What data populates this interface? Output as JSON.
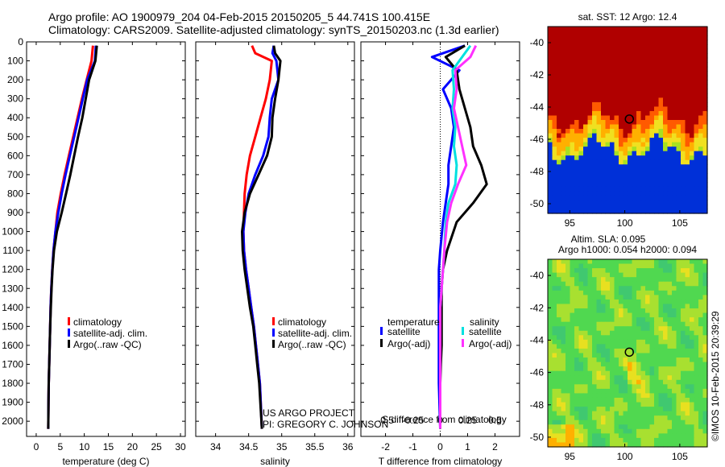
{
  "header": {
    "line1": "Argo profile: AO 1900979_204 04-Feb-2015 20150205_5 44.741S 100.415E",
    "line2": "Climatology: CARS2009. Satellite-adjusted climatology: synTS_20150203.nc (1.3d earlier)"
  },
  "colors": {
    "climatology": "#ff0000",
    "satellite": "#0000ff",
    "argo": "#000000",
    "satellite_salinity": "#00e0e0",
    "argo_salinity": "#ff30ff"
  },
  "chart_data": [
    {
      "type": "line",
      "name": "temperature-profile",
      "xlabel": "temperature (deg C)",
      "xlim": [
        -2,
        31
      ],
      "xticks": [
        0,
        5,
        10,
        15,
        20,
        25,
        30
      ],
      "ylim": [
        2080,
        0
      ],
      "yticks": [
        0,
        100,
        200,
        300,
        400,
        500,
        600,
        700,
        800,
        900,
        1000,
        1100,
        1200,
        1300,
        1400,
        1500,
        1600,
        1700,
        1800,
        1900,
        2000
      ],
      "legend": [
        "climatology",
        "satellite-adj. clim.",
        "Argo(..raw -QC)"
      ],
      "series": [
        {
          "name": "climatology",
          "color": "#ff0000",
          "x": [
            11.8,
            11.5,
            10.5,
            9.5,
            8.6,
            7.7,
            6.8,
            5.9,
            5.1,
            4.4,
            4.0,
            3.6,
            3.35,
            3.15,
            3.0,
            2.9,
            2.8,
            2.7,
            2.6,
            2.55,
            2.5
          ],
          "y": [
            20,
            100,
            200,
            300,
            400,
            500,
            600,
            700,
            800,
            900,
            1000,
            1100,
            1200,
            1300,
            1400,
            1500,
            1600,
            1700,
            1800,
            1900,
            2040
          ]
        },
        {
          "name": "satellite-adj. clim.",
          "color": "#0000ff",
          "x": [
            12.4,
            12.2,
            10.6,
            9.7,
            8.8,
            7.9,
            7.0,
            6.1,
            5.3,
            4.6,
            4.0,
            3.6,
            3.35,
            3.15,
            3.0,
            2.9,
            2.8,
            2.7,
            2.6,
            2.55,
            2.5
          ],
          "y": [
            20,
            100,
            200,
            300,
            400,
            500,
            600,
            700,
            800,
            900,
            1000,
            1100,
            1200,
            1300,
            1400,
            1500,
            1600,
            1700,
            1800,
            1900,
            2040
          ]
        },
        {
          "name": "Argo(..raw -QC)",
          "color": "#000000",
          "x": [
            12.6,
            12.3,
            11.0,
            10.3,
            9.6,
            8.7,
            7.9,
            7.1,
            6.2,
            5.3,
            4.3,
            3.7,
            3.4,
            3.2,
            3.05,
            2.9,
            2.8,
            2.7,
            2.6,
            2.55,
            2.5
          ],
          "y": [
            20,
            100,
            200,
            300,
            400,
            500,
            600,
            700,
            800,
            900,
            1000,
            1100,
            1200,
            1300,
            1400,
            1500,
            1600,
            1700,
            1800,
            1900,
            2040
          ]
        }
      ]
    },
    {
      "type": "line",
      "name": "salinity-profile",
      "xlabel": "salinity",
      "xlim": [
        33.7,
        36.1
      ],
      "xticks": [
        34,
        34.5,
        35,
        35.5,
        36
      ],
      "ylim": [
        2080,
        0
      ],
      "legend": [
        "climatology",
        "satellite-adj. clim.",
        "Argo(..raw -QC)"
      ],
      "series": [
        {
          "name": "climatology",
          "color": "#ff0000",
          "x": [
            34.55,
            34.6,
            34.85,
            34.82,
            34.76,
            34.68,
            34.6,
            34.52,
            34.47,
            34.44,
            34.43,
            34.42,
            34.43,
            34.46,
            34.5,
            34.54,
            34.58,
            34.61,
            34.64,
            34.67,
            34.7
          ],
          "y": [
            20,
            60,
            100,
            200,
            300,
            400,
            500,
            600,
            700,
            800,
            900,
            1000,
            1100,
            1200,
            1300,
            1400,
            1500,
            1600,
            1700,
            1800,
            2040
          ]
        },
        {
          "name": "satellite-adj. clim.",
          "color": "#0000ff",
          "x": [
            34.88,
            34.86,
            34.92,
            34.95,
            34.85,
            34.82,
            34.8,
            34.72,
            34.6,
            34.5,
            34.45,
            34.42,
            34.43,
            34.46,
            34.5,
            34.54,
            34.58,
            34.61,
            34.64,
            34.67,
            34.7
          ],
          "y": [
            20,
            60,
            100,
            200,
            300,
            400,
            500,
            600,
            700,
            800,
            900,
            1000,
            1100,
            1200,
            1300,
            1400,
            1500,
            1600,
            1700,
            1800,
            2040
          ]
        },
        {
          "name": "Argo(..raw -QC)",
          "color": "#000000",
          "x": [
            34.88,
            34.9,
            34.98,
            34.95,
            34.9,
            34.86,
            34.85,
            34.78,
            34.65,
            34.52,
            34.44,
            34.4,
            34.41,
            34.44,
            34.48,
            34.52,
            34.57,
            34.6,
            34.63,
            34.66,
            34.7
          ],
          "y": [
            20,
            60,
            100,
            200,
            300,
            400,
            500,
            600,
            700,
            800,
            900,
            1000,
            1100,
            1200,
            1300,
            1400,
            1500,
            1600,
            1700,
            1800,
            2040
          ]
        }
      ]
    },
    {
      "type": "line",
      "name": "difference-profile",
      "xlabel": "T difference from climatology",
      "xlabel_top": "S difference from climatology",
      "xlim": [
        -2.9,
        2.9
      ],
      "xticks": [
        -2,
        -1,
        0,
        1,
        2
      ],
      "xticks_salinity": [
        "-0.5",
        "-0.25",
        "0",
        "0.25",
        "0.5"
      ],
      "ylim": [
        2080,
        0
      ],
      "legend_titles": [
        "temperature",
        "salinity"
      ],
      "legend": [
        "satellite",
        "Argo(-adj)",
        "satellite",
        "Argo(-adj)"
      ],
      "series": [
        {
          "name": "satellite",
          "group": "temperature",
          "color": "#0000ff",
          "x": [
            0.9,
            -0.3,
            0.7,
            0.1,
            0.4,
            0.5,
            0.4,
            0.3,
            0.3,
            0.2,
            0.1,
            0.0,
            -0.05,
            -0.05,
            -0.05,
            -0.05,
            -0.05,
            -0.05,
            -0.05,
            0.0
          ],
          "y": [
            20,
            80,
            150,
            250,
            350,
            450,
            550,
            650,
            750,
            850,
            950,
            1100,
            1200,
            1300,
            1400,
            1500,
            1600,
            1700,
            1800,
            2040
          ]
        },
        {
          "name": "Argo(-adj)",
          "group": "temperature",
          "color": "#000000",
          "x": [
            0.9,
            0.2,
            0.6,
            0.7,
            0.9,
            1.1,
            1.2,
            1.5,
            1.7,
            1.2,
            0.6,
            0.25,
            0.1,
            0.05,
            0.05,
            0.05,
            0.05,
            0.02,
            0.0,
            0.0
          ],
          "y": [
            20,
            80,
            150,
            250,
            350,
            450,
            550,
            650,
            750,
            850,
            950,
            1100,
            1200,
            1300,
            1400,
            1500,
            1600,
            1700,
            1800,
            2040
          ]
        },
        {
          "name": "satellite",
          "group": "salinity",
          "color": "#00e0e0",
          "x": [
            1.1,
            0.8,
            0.45,
            0.5,
            0.45,
            0.55,
            0.5,
            0.6,
            0.55,
            0.3,
            0.2,
            0.15,
            0.1,
            0.05,
            0.0,
            0.0,
            0.0,
            0.0,
            0.0,
            0.0
          ],
          "y": [
            20,
            80,
            150,
            250,
            350,
            450,
            550,
            650,
            750,
            850,
            950,
            1100,
            1200,
            1300,
            1400,
            1500,
            1600,
            1700,
            1800,
            2040
          ]
        },
        {
          "name": "Argo(-adj)",
          "group": "salinity",
          "color": "#ff30ff",
          "x": [
            1.3,
            1.1,
            0.55,
            0.6,
            0.5,
            0.65,
            0.8,
            0.95,
            0.65,
            0.4,
            0.25,
            0.15,
            0.1,
            0.05,
            0.0,
            0.0,
            0.0,
            0.0,
            0.0,
            0.0
          ],
          "y": [
            20,
            80,
            150,
            250,
            350,
            450,
            550,
            650,
            750,
            850,
            950,
            1100,
            1200,
            1300,
            1400,
            1500,
            1600,
            1700,
            1800,
            2040
          ]
        }
      ]
    },
    {
      "type": "heatmap",
      "name": "sst-map",
      "title": "sat. SST: 12 Argo: 12.4",
      "xlim": [
        93,
        107.5
      ],
      "ylim": [
        -50.6,
        -39
      ],
      "xticks": [
        95,
        100,
        105
      ],
      "yticks": [
        -40,
        -42,
        -44,
        -46,
        -48,
        -50
      ],
      "marker": {
        "lon": 100.415,
        "lat": -44.741
      }
    },
    {
      "type": "heatmap",
      "name": "sla-map",
      "title_line1": "Altim. SLA: 0.095",
      "title_line2": "Argo h1000: 0.054 h2000: 0.094",
      "xlim": [
        93,
        107.5
      ],
      "ylim": [
        -50.6,
        -39
      ],
      "xticks": [
        95,
        100,
        105
      ],
      "yticks": [
        -40,
        -42,
        -44,
        -46,
        -48,
        -50
      ],
      "marker": {
        "lon": 100.415,
        "lat": -44.741
      }
    }
  ],
  "annotations": {
    "project_line1": "US ARGO PROJECT",
    "project_line2": "PI: GREGORY C. JOHNSON",
    "watermark": "©IMOS 10-Feb-2015 20:39:29"
  }
}
